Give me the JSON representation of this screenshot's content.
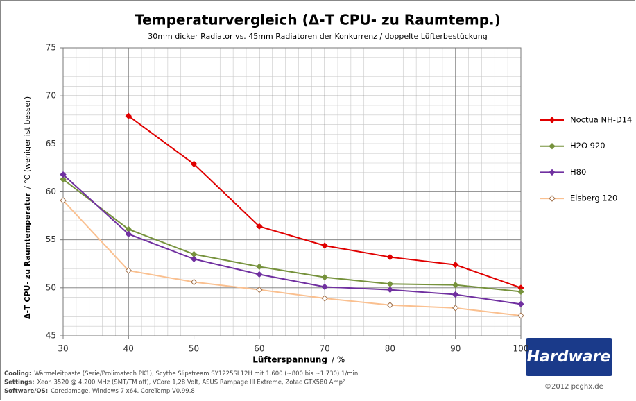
{
  "chart_data": {
    "type": "line",
    "title": "Temperaturvergleich  (Δ-T CPU- zu Raumtemp.)",
    "subtitle": "30mm dicker Radiator vs. 45mm Radiatoren der Konkurrenz / doppelte Lüfterbestückung",
    "xlabel": "Lüfterspannung",
    "xlabel_unit": "/ %",
    "ylabel": "Δ-T  CPU- zu Raumtemperatur",
    "ylabel_unit": "/ °C (weniger ist besser)",
    "x": [
      30,
      40,
      50,
      60,
      70,
      80,
      90,
      100
    ],
    "xlim": [
      30,
      100
    ],
    "xticks": [
      30,
      40,
      50,
      60,
      70,
      80,
      90,
      100
    ],
    "ylim": [
      45,
      75
    ],
    "yticks": [
      45,
      50,
      55,
      60,
      65,
      70,
      75
    ],
    "grid": true,
    "legend": "right",
    "series": [
      {
        "name": "Noctua NH-D14",
        "color": "#e00000",
        "marker_fill": "#e00000",
        "values": [
          null,
          67.9,
          62.9,
          56.4,
          54.4,
          53.2,
          52.4,
          50.0
        ]
      },
      {
        "name": "H2O 920",
        "color": "#76923c",
        "marker_fill": "#76923c",
        "values": [
          61.3,
          56.1,
          53.5,
          52.2,
          51.1,
          50.4,
          50.3,
          49.6
        ]
      },
      {
        "name": "H80",
        "color": "#7030a0",
        "marker_fill": "#7030a0",
        "values": [
          61.8,
          55.6,
          53.0,
          51.4,
          50.1,
          49.8,
          49.3,
          48.3
        ]
      },
      {
        "name": "Eisberg 120",
        "color": "#fac090",
        "marker_fill": "#ffffff",
        "values": [
          59.1,
          51.8,
          50.6,
          49.8,
          48.9,
          48.2,
          47.9,
          47.1
        ]
      }
    ],
    "footer": [
      {
        "label": "Cooling:",
        "text": "Wärmeleitpaste (Serie/Prolimatech PK1), Scythe Slipstream SY1225SL12H mit 1.600 (~800 bis ~1.730) 1/min"
      },
      {
        "label": "Settings:",
        "text": "Xeon 3520 @ 4.200 MHz (SMT/TM off), VCore 1,28 Volt, ASUS Rampage III Extreme, Zotac GTX580 Amp²"
      },
      {
        "label": "Software/OS:",
        "text": "Coredamage, Windows 7 x64, CoreTemp V0.99.8"
      }
    ],
    "logo": "Hardware",
    "copyright": "©2012 pcghx.de"
  }
}
